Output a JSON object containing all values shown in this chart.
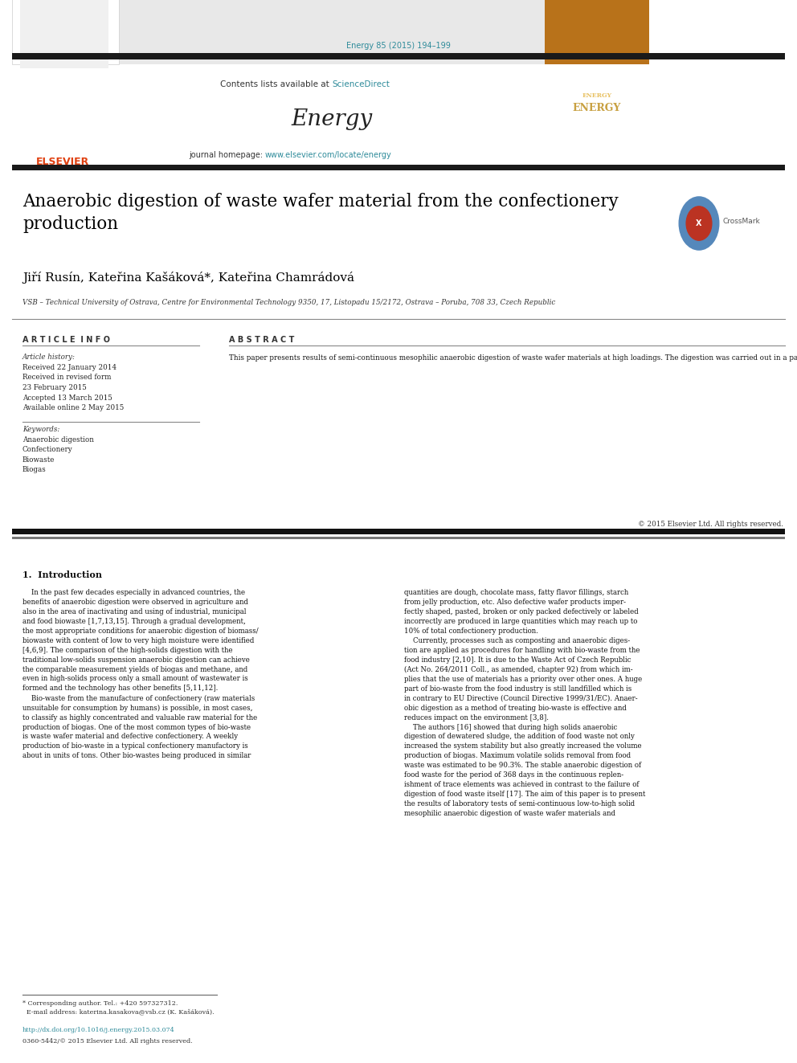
{
  "page_width": 9.92,
  "page_height": 13.23,
  "background_color": "#ffffff",
  "header_citation": "Energy 85 (2015) 194–199",
  "header_citation_color": "#2e8b9a",
  "journal_header_bg": "#e8e8e8",
  "journal_name": "Energy",
  "journal_contents_text": "Contents lists available at ",
  "journal_sciencedirect": "ScienceDirect",
  "journal_homepage_text": "journal homepage: ",
  "journal_homepage_url": "www.elsevier.com/locate/energy",
  "link_color": "#2e8b9a",
  "thick_bar_color": "#1a1a1a",
  "article_title": "Anaerobic digestion of waste wafer material from the confectionery\nproduction",
  "authors": "Jiří Rusín, Kateřina Kašáková*, Kateřina Chamrádová",
  "affiliation": "VSB – Technical University of Ostrava, Centre for Environmental Technology 9350, 17, Listopadu 15/2172, Ostrava – Poruba, 708 33, Czech Republic",
  "article_info_title": "A R T I C L E  I N F O",
  "article_history_label": "Article history:",
  "article_history": [
    "Received 22 January 2014",
    "Received in revised form",
    "23 February 2015",
    "Accepted 13 March 2015",
    "Available online 2 May 2015"
  ],
  "keywords_label": "Keywords:",
  "keywords": [
    "Anaerobic digestion",
    "Confectionery",
    "Biowaste",
    "Biogas"
  ],
  "abstract_title": "A B S T R A C T",
  "abstract_text": "This paper presents results of semi-continuous mesophilic anaerobic digestion of waste wafer materials at high loadings. The digestion was carried out in a partially mixed horizontal fermenter. A model digestion was conducted in a way that the volume of the fermenter reached a high intensity of methane production at a low production of digestate without the addition of trace elements. For this reason, the waste was fed in a concentrated form. The intensity of dry biogas production was 6.44 mN³ m⁻³ d⁻¹ with the average methane content of 55.1 vol% at the average load of 8.23 kgvs m⁻³ d⁻¹ during 203 days and the average hydraulic retention time of 148 days. The process was running stably at C:N ratio 5.3:1, at pH between 7.5 and 8.2, at the average temperature 39.7 °C and the ratio of total inorganic carbonate to the sum of lower fatty acids about 1:1. The specific biogas yield from waste wafer material was 0.703 mN³ kg⁻¹. The digestate contained 13.4 wt% of total dry matter in average with the loss on ignition of 75.4 wt% for the whole process. The dry matter of digestate contained 10 wt% of lipids and to 3.5 wt% of lower fatty acids.",
  "copyright_text": "© 2015 Elsevier Ltd. All rights reserved.",
  "section1_title": "1.  Introduction",
  "intro_left_col": "    In the past few decades especially in advanced countries, the\nbenefits of anaerobic digestion were observed in agriculture and\nalso in the area of inactivating and using of industrial, municipal\nand food biowaste [1,7,13,15]. Through a gradual development,\nthe most appropriate conditions for anaerobic digestion of biomass/\nbiowaste with content of low to very high moisture were identified\n[4,6,9]. The comparison of the high-solids digestion with the\ntraditional low-solids suspension anaerobic digestion can achieve\nthe comparable measurement yields of biogas and methane, and\neven in high-solids process only a small amount of wastewater is\nformed and the technology has other benefits [5,11,12].\n    Bio-waste from the manufacture of confectionery (raw materials\nunsuitable for consumption by humans) is possible, in most cases,\nto classify as highly concentrated and valuable raw material for the\nproduction of biogas. One of the most common types of bio-waste\nis waste wafer material and defective confectionery. A weekly\nproduction of bio-waste in a typical confectionery manufactory is\nabout in units of tons. Other bio-wastes being produced in similar",
  "intro_right_col": "quantities are dough, chocolate mass, fatty flavor fillings, starch\nfrom jelly production, etc. Also defective wafer products imper-\nfectly shaped, pasted, broken or only packed defectively or labeled\nincorrectly are produced in large quantities which may reach up to\n10% of total confectionery production.\n    Currently, processes such as composting and anaerobic diges-\ntion are applied as procedures for handling with bio-waste from the\nfood industry [2,10]. It is due to the Waste Act of Czech Republic\n(Act No. 264/2011 Coll., as amended, chapter 92) from which im-\nplies that the use of materials has a priority over other ones. A huge\npart of bio-waste from the food industry is still landfilled which is\nin contrary to EU Directive (Council Directive 1999/31/EC). Anaer-\nobic digestion as a method of treating bio-waste is effective and\nreduces impact on the environment [3,8].\n    The authors [16] showed that during high solids anaerobic\ndigestion of dewatered sludge, the addition of food waste not only\nincreased the system stability but also greatly increased the volume\nproduction of biogas. Maximum volatile solids removal from food\nwaste was estimated to be 90.3%. The stable anaerobic digestion of\nfood waste for the period of 368 days in the continuous replen-\nishment of trace elements was achieved in contrast to the failure of\ndigestion of food waste itself [17]. The aim of this paper is to present\nthe results of laboratory tests of semi-continuous low-to-high solid\nmesophilic anaerobic digestion of waste wafer materials and",
  "footnote_text": "* Corresponding author. Tel.: +420 597327312.\n  E-mail address: katerina.kasakova@vsb.cz (K. Kašáková).",
  "footnote_doi": "http://dx.doi.org/10.1016/j.energy.2015.03.074",
  "footnote_issn": "0360-5442/© 2015 Elsevier Ltd. All rights reserved.",
  "text_color": "#000000",
  "gray_text": "#555555"
}
